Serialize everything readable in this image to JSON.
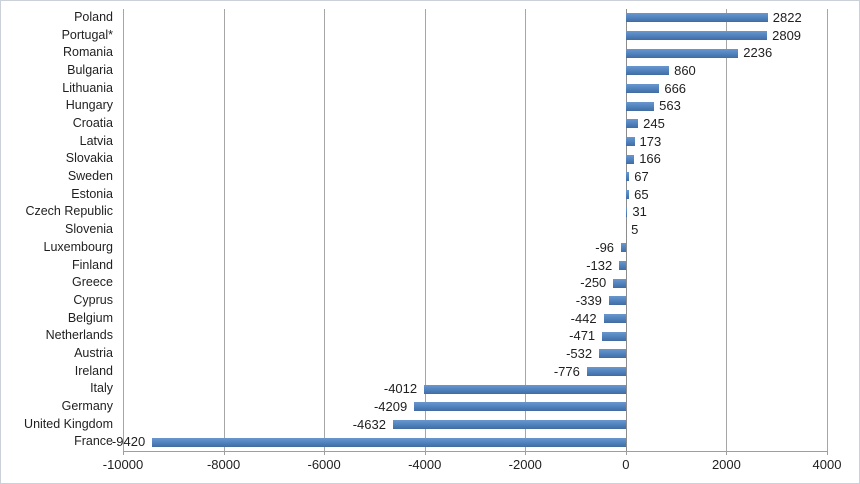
{
  "chart_data": {
    "type": "bar",
    "orientation": "horizontal",
    "title": "",
    "xlabel": "",
    "ylabel": "",
    "legend": false,
    "grid": true,
    "data_labels": true,
    "xlim": [
      -10000,
      4000
    ],
    "x_ticks": [
      -10000,
      -8000,
      -6000,
      -4000,
      -2000,
      0,
      2000,
      4000
    ],
    "categories": [
      "Poland",
      "Portugal*",
      "Romania",
      "Bulgaria",
      "Lithuania",
      "Hungary",
      "Croatia",
      "Latvia",
      "Slovakia",
      "Sweden",
      "Estonia",
      "Czech Republic",
      "Slovenia",
      "Luxembourg",
      "Finland",
      "Greece",
      "Cyprus",
      "Belgium",
      "Netherlands",
      "Austria",
      "Ireland",
      "Italy",
      "Germany",
      "United Kingdom",
      "France"
    ],
    "values": [
      2822,
      2809,
      2236,
      860,
      666,
      563,
      245,
      173,
      166,
      67,
      65,
      31,
      5,
      -96,
      -132,
      -250,
      -339,
      -442,
      -471,
      -532,
      -776,
      -4012,
      -4209,
      -4632,
      -9420
    ],
    "colors": {
      "bar": "#4F81BD",
      "bar_gradient_top": "#6A97CC",
      "bar_gradient_bottom": "#426C9E",
      "grid": "#A6A6A6",
      "zero_axis": "#8C8C8C",
      "axis": "#9E9E9E",
      "text": "#1F1F1F",
      "background": "#FFFFFF"
    }
  }
}
